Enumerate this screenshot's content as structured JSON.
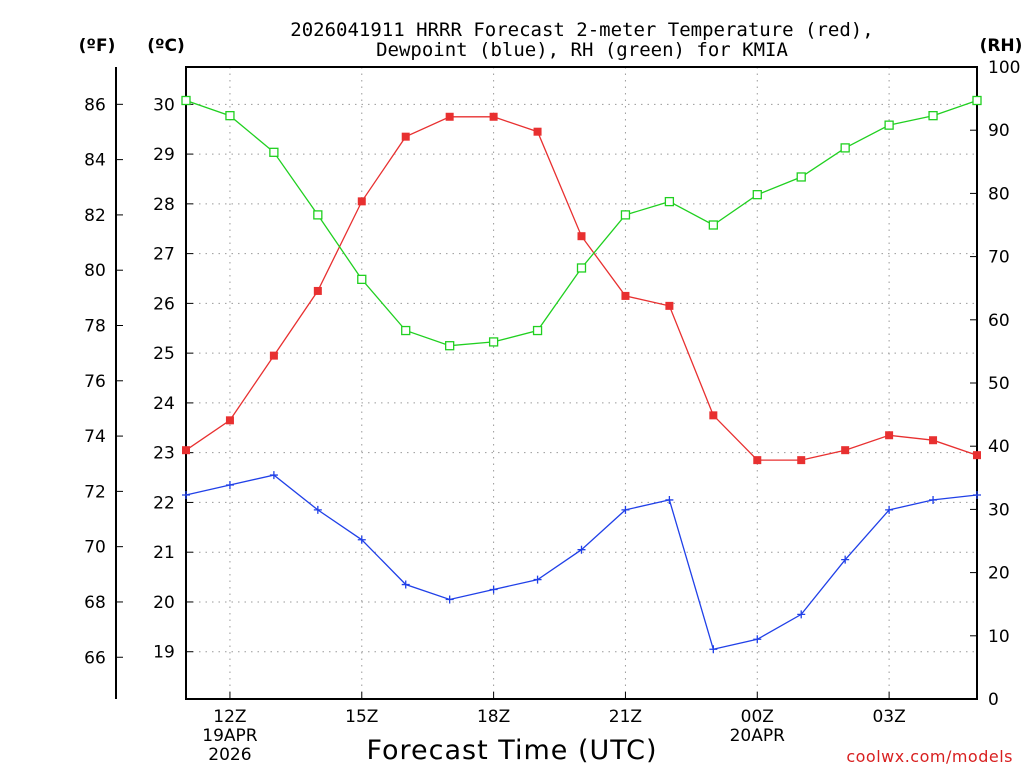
{
  "chart_data": {
    "type": "line",
    "title_line1": "2026041911 HRRR Forecast 2-meter Temperature (red),",
    "title_line2": "Dewpoint (blue), RH (green) for KMIA",
    "xlabel": "Forecast Time (UTC)",
    "watermark": "coolwx.com/models",
    "unit_f": "(ºF)",
    "unit_c": "(ºC)",
    "unit_rh": "(RH)",
    "x_hours": [
      11,
      12,
      13,
      14,
      15,
      16,
      17,
      18,
      19,
      20,
      21,
      22,
      23,
      24,
      25,
      26,
      27,
      28,
      29
    ],
    "x_ticks": [
      {
        "hour": 12,
        "label": "12Z",
        "sub1": "19APR",
        "sub2": "2026"
      },
      {
        "hour": 15,
        "label": "15Z",
        "sub1": "",
        "sub2": ""
      },
      {
        "hour": 18,
        "label": "18Z",
        "sub1": "",
        "sub2": ""
      },
      {
        "hour": 21,
        "label": "21Z",
        "sub1": "",
        "sub2": ""
      },
      {
        "hour": 24,
        "label": "00Z",
        "sub1": "20APR",
        "sub2": ""
      },
      {
        "hour": 27,
        "label": "03Z",
        "sub1": "",
        "sub2": ""
      }
    ],
    "xlim": [
      11,
      29
    ],
    "ylim_c": [
      18.05,
      30.75
    ],
    "y_ticks_c": [
      19,
      20,
      21,
      22,
      23,
      24,
      25,
      26,
      27,
      28,
      29,
      30
    ],
    "y_ticks_f": [
      66,
      68,
      70,
      72,
      74,
      76,
      78,
      80,
      82,
      84,
      86
    ],
    "y_ticks_rh": [
      0,
      10,
      20,
      30,
      40,
      50,
      60,
      70,
      80,
      90,
      100
    ],
    "ylim_rh": [
      0,
      100
    ],
    "series": [
      {
        "name": "Temperature",
        "color": "#e83030",
        "marker": "filled-square",
        "values_c": [
          23.05,
          23.65,
          24.95,
          26.25,
          28.05,
          29.35,
          29.75,
          29.75,
          29.45,
          27.35,
          26.15,
          25.95,
          23.75,
          22.85,
          22.85,
          23.05,
          23.35,
          23.25,
          22.95
        ]
      },
      {
        "name": "Dewpoint",
        "color": "#2040e8",
        "marker": "plus",
        "values_c": [
          22.15,
          22.35,
          22.55,
          21.85,
          21.25,
          20.35,
          20.05,
          20.25,
          20.45,
          21.05,
          21.85,
          22.05,
          19.05,
          19.25,
          19.75,
          20.85,
          21.85,
          22.05,
          22.15
        ]
      },
      {
        "name": "RH",
        "color": "#20d020",
        "marker": "open-square",
        "values_rh": [
          94.7,
          92.3,
          86.5,
          76.6,
          66.4,
          58.3,
          55.9,
          56.5,
          58.3,
          68.2,
          76.6,
          78.7,
          75.0,
          79.8,
          82.6,
          87.2,
          90.8,
          92.3,
          94.7
        ]
      }
    ]
  }
}
